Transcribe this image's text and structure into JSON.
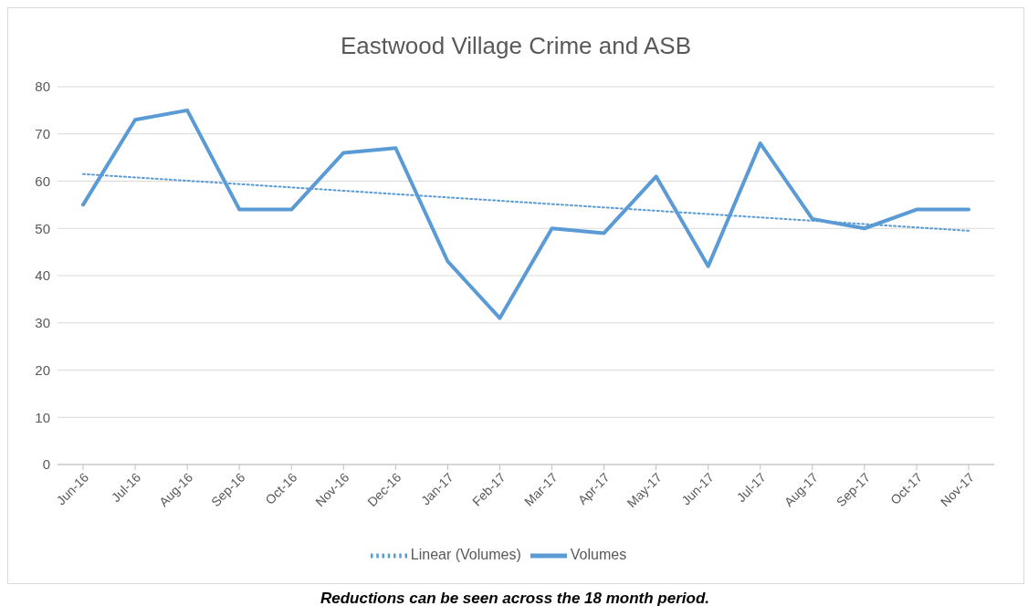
{
  "chart_data": {
    "type": "line",
    "title": "Eastwood Village Crime and ASB",
    "categories": [
      "Jun-16",
      "Jul-16",
      "Aug-16",
      "Sep-16",
      "Oct-16",
      "Nov-16",
      "Dec-16",
      "Jan-17",
      "Feb-17",
      "Mar-17",
      "Apr-17",
      "May-17",
      "Jun-17",
      "Jul-17",
      "Aug-17",
      "Sep-17",
      "Oct-17",
      "Nov-17"
    ],
    "series": [
      {
        "name": "Volumes",
        "color": "#5b9bd5",
        "values": [
          55,
          73,
          75,
          54,
          54,
          66,
          67,
          43,
          31,
          50,
          49,
          61,
          42,
          68,
          52,
          50,
          54,
          54
        ],
        "line_style": "solid"
      },
      {
        "name": "Linear (Volumes)",
        "color": "#5b9bd5",
        "type": "line",
        "x": [
          "Jun-16",
          "Nov-17"
        ],
        "values": [
          61.5,
          49.5
        ],
        "line_style": "dotted"
      }
    ],
    "ylim": [
      0,
      80
    ],
    "yticks": [
      0,
      10,
      20,
      30,
      40,
      50,
      60,
      70,
      80
    ],
    "grid": "y",
    "legend": "bottom",
    "marker": "none",
    "annotations": [
      "Reductions can be seen across the 18 month period."
    ]
  }
}
